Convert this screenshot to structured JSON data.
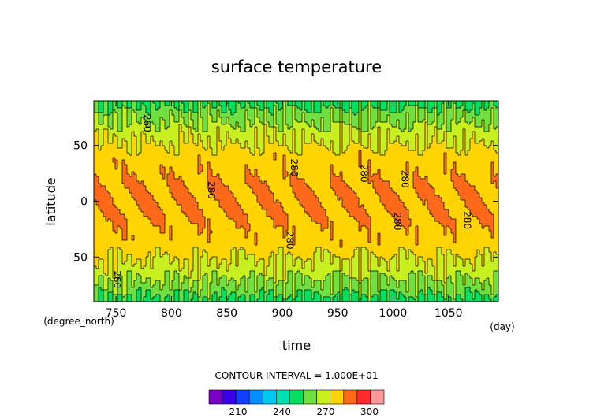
{
  "chart_data": {
    "type": "heatmap",
    "title": "surface temperature",
    "xlabel": "time",
    "ylabel": "latitude",
    "x_unit": "(day)",
    "y_unit": "(degree_north)",
    "xlim": [
      730,
      1095
    ],
    "ylim": [
      -90,
      90
    ],
    "x_ticks": [
      750,
      800,
      850,
      900,
      950,
      1000,
      1050
    ],
    "y_ticks": [
      50,
      0,
      -50
    ],
    "annotation": "CONTOUR INTERVAL = 1.000E+01",
    "contour_interval": 10,
    "contour_labels": [
      {
        "x": 775,
        "y": 70,
        "text": "260"
      },
      {
        "x": 833,
        "y": 10,
        "text": "280"
      },
      {
        "x": 908,
        "y": 30,
        "text": "280"
      },
      {
        "x": 904,
        "y": -35,
        "text": "280"
      },
      {
        "x": 971,
        "y": 25,
        "text": "280"
      },
      {
        "x": 1008,
        "y": 20,
        "text": "280"
      },
      {
        "x": 1001,
        "y": -18,
        "text": "280"
      },
      {
        "x": 1064,
        "y": -17,
        "text": "280"
      },
      {
        "x": 748,
        "y": -70,
        "text": "260"
      }
    ],
    "colorbar": {
      "levels": [
        190,
        200,
        210,
        220,
        230,
        240,
        250,
        260,
        270,
        280,
        290,
        300,
        310
      ],
      "tick_labels": [
        210,
        240,
        270,
        300
      ],
      "colors": [
        "#7a00c8",
        "#3a00e6",
        "#1040ff",
        "#0090ff",
        "#00c8f0",
        "#00e0b0",
        "#00e060",
        "#70e040",
        "#c8f020",
        "#ffd400",
        "#ff6a1a",
        "#ff2a2a",
        "#ff9898"
      ]
    }
  }
}
